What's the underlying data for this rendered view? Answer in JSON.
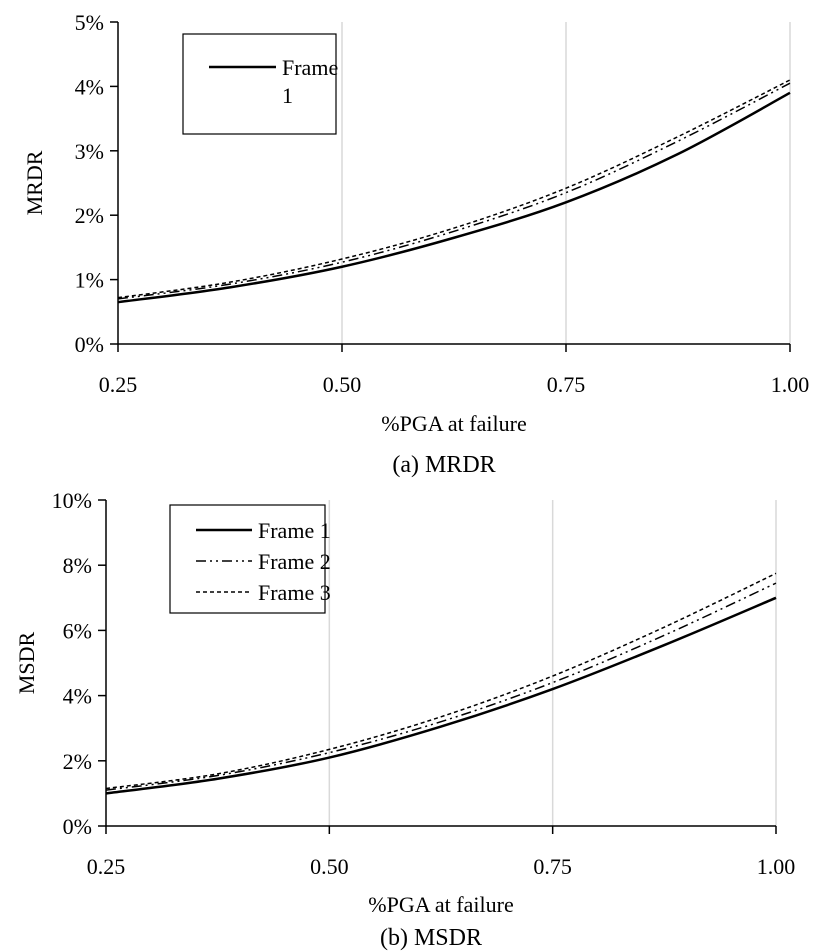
{
  "chart_data": [
    {
      "type": "line",
      "caption": "(a) MRDR",
      "xlabel": "%PGA at failure",
      "ylabel": "MRDR",
      "xlim": [
        0.25,
        1.0
      ],
      "ylim": [
        0,
        5
      ],
      "x_ticks": [
        "0.25",
        "0.50",
        "0.75",
        "1.00"
      ],
      "y_ticks": [
        "0%",
        "1%",
        "2%",
        "3%",
        "4%",
        "5%"
      ],
      "grid": "vertical",
      "legend": {
        "placement": "top-left",
        "entries": [
          "Frame\n1"
        ]
      },
      "x": [
        0.25,
        0.375,
        0.5,
        0.625,
        0.75,
        0.875,
        1.0
      ],
      "series": [
        {
          "name": "Frame 1",
          "style": "solid",
          "values": [
            0.65,
            0.88,
            1.2,
            1.65,
            2.2,
            2.95,
            3.9
          ]
        },
        {
          "style": "dashdot",
          "values": [
            0.7,
            0.93,
            1.27,
            1.75,
            2.35,
            3.15,
            4.05
          ]
        },
        {
          "style": "dotted",
          "values": [
            0.72,
            0.96,
            1.32,
            1.8,
            2.42,
            3.22,
            4.1
          ]
        }
      ]
    },
    {
      "type": "line",
      "caption": "(b) MSDR",
      "xlabel": "%PGA at failure",
      "ylabel": "MSDR",
      "xlim": [
        0.25,
        1.0
      ],
      "ylim": [
        0,
        10
      ],
      "x_ticks": [
        "0.25",
        "0.50",
        "0.75",
        "1.00"
      ],
      "y_ticks": [
        "0%",
        "2%",
        "4%",
        "6%",
        "8%",
        "10%"
      ],
      "grid": "vertical",
      "legend": {
        "placement": "top-left",
        "entries": [
          "Frame 1",
          "Frame 2",
          "Frame 3"
        ]
      },
      "x": [
        0.25,
        0.375,
        0.5,
        0.625,
        0.75,
        0.875,
        1.0
      ],
      "series": [
        {
          "name": "Frame 1",
          "style": "solid",
          "values": [
            1.0,
            1.45,
            2.1,
            3.05,
            4.2,
            5.55,
            7.0
          ]
        },
        {
          "name": "Frame 2",
          "style": "dashdot",
          "values": [
            1.1,
            1.55,
            2.25,
            3.2,
            4.4,
            5.85,
            7.45
          ]
        },
        {
          "name": "Frame 3",
          "style": "dotted",
          "values": [
            1.15,
            1.6,
            2.35,
            3.35,
            4.6,
            6.1,
            7.75
          ]
        }
      ]
    }
  ]
}
